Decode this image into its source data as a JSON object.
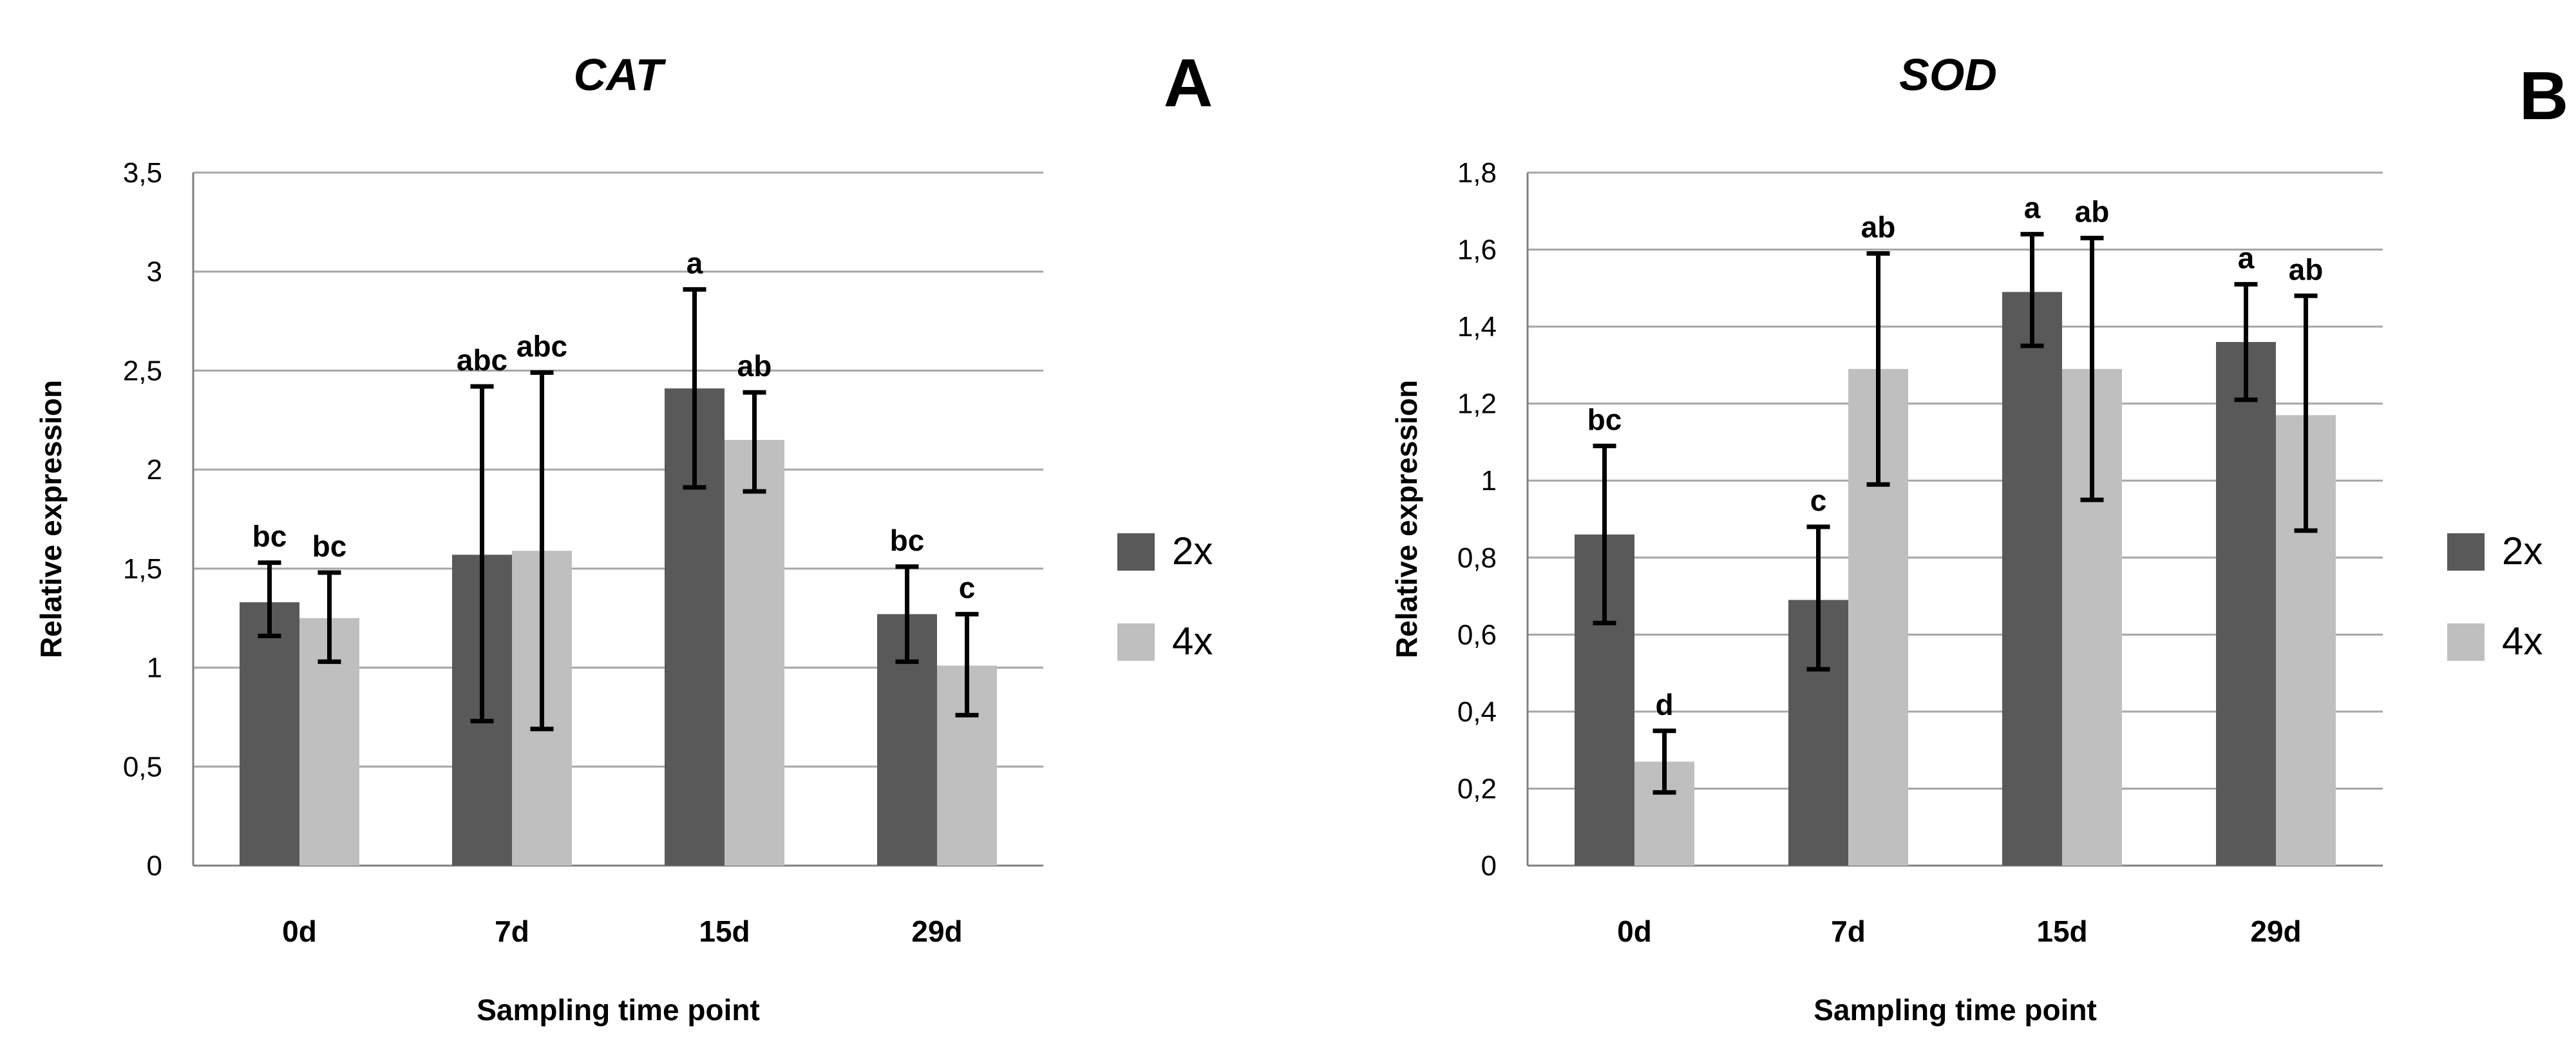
{
  "colors": {
    "series_2x": "#595959",
    "series_4x": "#bfbfbf",
    "grid": "#a6a6a6",
    "axis": "#808080",
    "text": "#000000",
    "errorbar": "#000000"
  },
  "chart_data": [
    {
      "type": "bar",
      "panel_label": "A",
      "title": "CAT",
      "xlabel": "Sampling time point",
      "ylabel": "Relative expression",
      "categories": [
        "0d",
        "7d",
        "15d",
        "29d"
      ],
      "ylim": [
        0,
        3.5
      ],
      "yticks": [
        0,
        0.5,
        1,
        1.5,
        2,
        2.5,
        3,
        3.5
      ],
      "ytick_labels": [
        "0",
        "0,5",
        "1",
        "1,5",
        "2",
        "2,5",
        "3",
        "3,5"
      ],
      "grid": true,
      "legend": "right",
      "series": [
        {
          "name": "2x",
          "values": [
            1.33,
            1.57,
            2.41,
            1.27
          ],
          "err_low": [
            1.16,
            0.73,
            1.91,
            1.03
          ],
          "err_high": [
            1.53,
            2.42,
            2.91,
            1.51
          ],
          "letters": [
            "bc",
            "abc",
            "a",
            "bc"
          ]
        },
        {
          "name": "4x",
          "values": [
            1.25,
            1.59,
            2.15,
            1.01
          ],
          "err_low": [
            1.03,
            0.69,
            1.89,
            0.76
          ],
          "err_high": [
            1.48,
            2.49,
            2.39,
            1.27
          ],
          "letters": [
            "bc",
            "abc",
            "ab",
            "c"
          ]
        }
      ]
    },
    {
      "type": "bar",
      "panel_label": "B",
      "title": "SOD",
      "xlabel": "Sampling time point",
      "ylabel": "Relative expression",
      "categories": [
        "0d",
        "7d",
        "15d",
        "29d"
      ],
      "ylim": [
        0,
        1.8
      ],
      "yticks": [
        0,
        0.2,
        0.4,
        0.6,
        0.8,
        1,
        1.2,
        1.4,
        1.6,
        1.8
      ],
      "ytick_labels": [
        "0",
        "0,2",
        "0,4",
        "0,6",
        "0,8",
        "1",
        "1,2",
        "1,4",
        "1,6",
        "1,8"
      ],
      "grid": true,
      "legend": "right",
      "series": [
        {
          "name": "2x",
          "values": [
            0.86,
            0.69,
            1.49,
            1.36
          ],
          "err_low": [
            0.63,
            0.51,
            1.35,
            1.21
          ],
          "err_high": [
            1.09,
            0.88,
            1.64,
            1.51
          ],
          "letters": [
            "bc",
            "c",
            "a",
            "a"
          ]
        },
        {
          "name": "4x",
          "values": [
            0.27,
            1.29,
            1.29,
            1.17
          ],
          "err_low": [
            0.19,
            0.99,
            0.95,
            0.87
          ],
          "err_high": [
            0.35,
            1.59,
            1.63,
            1.48
          ],
          "letters": [
            "d",
            "ab",
            "ab",
            "ab"
          ]
        }
      ]
    }
  ]
}
